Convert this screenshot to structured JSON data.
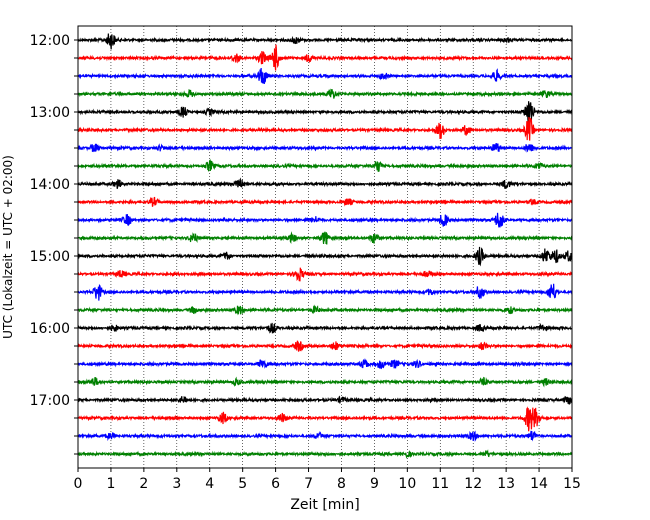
{
  "chart_data": {
    "type": "line",
    "title": "",
    "xlabel": "Zeit  [min]",
    "ylabel": "UTC (Lokalzeit = UTC + 02:00)",
    "xlim": [
      0,
      15
    ],
    "x_ticks": [
      0,
      1,
      2,
      3,
      4,
      5,
      6,
      7,
      8,
      9,
      10,
      11,
      12,
      13,
      14,
      15
    ],
    "y_tick_labels": [
      "12:00",
      "13:00",
      "14:00",
      "15:00",
      "16:00",
      "17:00"
    ],
    "grid": true,
    "line_colors": [
      "#000000",
      "#ff0000",
      "#0000ff",
      "#008000"
    ],
    "traces": [
      {
        "start": "12:00",
        "events": [
          [
            1.0,
            1.6
          ],
          [
            6.6,
            0.6
          ],
          [
            13.0,
            0.5
          ]
        ]
      },
      {
        "start": "12:15",
        "events": [
          [
            6.0,
            2.4
          ],
          [
            4.8,
            0.9
          ],
          [
            5.6,
            1.2
          ],
          [
            7.0,
            0.7
          ]
        ]
      },
      {
        "start": "12:30",
        "events": [
          [
            5.6,
            1.8
          ],
          [
            9.3,
            0.6
          ],
          [
            12.7,
            1.0
          ]
        ]
      },
      {
        "start": "12:45",
        "events": [
          [
            3.4,
            0.6
          ],
          [
            7.7,
            1.1
          ],
          [
            14.2,
            0.6
          ]
        ]
      },
      {
        "start": "13:00",
        "events": [
          [
            3.2,
            1.0
          ],
          [
            13.7,
            2.8
          ],
          [
            4.0,
            0.5
          ]
        ]
      },
      {
        "start": "13:15",
        "events": [
          [
            11.0,
            1.6
          ],
          [
            11.8,
            0.9
          ],
          [
            13.7,
            2.4
          ]
        ]
      },
      {
        "start": "13:30",
        "events": [
          [
            0.5,
            0.8
          ],
          [
            2.5,
            0.5
          ],
          [
            12.7,
            0.9
          ],
          [
            13.7,
            1.0
          ]
        ]
      },
      {
        "start": "13:45",
        "events": [
          [
            4.0,
            1.0
          ],
          [
            9.1,
            1.1
          ],
          [
            14.0,
            0.6
          ]
        ]
      },
      {
        "start": "14:00",
        "events": [
          [
            1.2,
            0.8
          ],
          [
            4.9,
            1.2
          ],
          [
            13.0,
            0.8
          ]
        ]
      },
      {
        "start": "14:15",
        "events": [
          [
            2.3,
            0.8
          ],
          [
            8.2,
            0.7
          ],
          [
            13.8,
            0.5
          ]
        ]
      },
      {
        "start": "14:30",
        "events": [
          [
            1.5,
            1.0
          ],
          [
            7.2,
            0.6
          ],
          [
            11.1,
            1.3
          ],
          [
            12.8,
            1.9
          ]
        ]
      },
      {
        "start": "14:45",
        "events": [
          [
            3.5,
            1.0
          ],
          [
            7.5,
            1.3
          ],
          [
            9.0,
            1.0
          ],
          [
            6.5,
            0.7
          ]
        ]
      },
      {
        "start": "15:00",
        "events": [
          [
            4.5,
            0.7
          ],
          [
            12.2,
            1.7
          ],
          [
            14.2,
            1.4
          ],
          [
            14.5,
            1.3
          ],
          [
            14.9,
            1.0
          ]
        ]
      },
      {
        "start": "15:15",
        "events": [
          [
            6.7,
            1.4
          ],
          [
            1.3,
            0.6
          ],
          [
            10.6,
            0.5
          ]
        ]
      },
      {
        "start": "15:30",
        "events": [
          [
            0.6,
            1.6
          ],
          [
            12.2,
            1.2
          ],
          [
            14.4,
            1.8
          ],
          [
            10.7,
            0.5
          ]
        ]
      },
      {
        "start": "15:45",
        "events": [
          [
            3.5,
            0.6
          ],
          [
            4.9,
            0.8
          ],
          [
            7.2,
            0.6
          ],
          [
            13.1,
            0.6
          ]
        ]
      },
      {
        "start": "16:00",
        "events": [
          [
            1.1,
            0.6
          ],
          [
            5.9,
            0.9
          ],
          [
            12.2,
            0.6
          ],
          [
            14.1,
            0.6
          ]
        ]
      },
      {
        "start": "16:15",
        "events": [
          [
            6.7,
            0.9
          ],
          [
            7.8,
            0.8
          ],
          [
            12.3,
            0.6
          ]
        ]
      },
      {
        "start": "16:30",
        "events": [
          [
            5.6,
            0.9
          ],
          [
            8.7,
            0.8
          ],
          [
            9.2,
            0.8
          ],
          [
            9.6,
            0.7
          ],
          [
            10.3,
            0.6
          ]
        ]
      },
      {
        "start": "16:45",
        "events": [
          [
            0.5,
            0.8
          ],
          [
            4.8,
            0.6
          ],
          [
            12.3,
            0.7
          ],
          [
            14.2,
            0.6
          ]
        ]
      },
      {
        "start": "17:00",
        "events": [
          [
            3.2,
            0.6
          ],
          [
            8.0,
            0.6
          ],
          [
            14.9,
            0.9
          ]
        ]
      },
      {
        "start": "17:15",
        "events": [
          [
            4.4,
            1.0
          ],
          [
            6.2,
            0.8
          ],
          [
            13.7,
            2.4
          ],
          [
            13.9,
            1.6
          ]
        ]
      },
      {
        "start": "17:30",
        "events": [
          [
            1.0,
            0.6
          ],
          [
            7.3,
            0.6
          ],
          [
            12.0,
            0.8
          ],
          [
            13.8,
            1.0
          ]
        ]
      },
      {
        "start": "17:45",
        "events": [
          [
            10.0,
            0.5
          ],
          [
            12.4,
            0.5
          ]
        ]
      }
    ]
  }
}
